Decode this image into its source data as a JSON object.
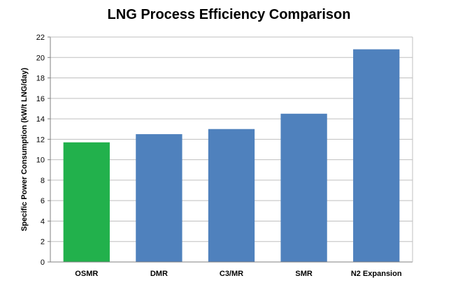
{
  "chart_data": {
    "type": "bar",
    "title": "LNG Process Efficiency Comparison",
    "xlabel": "",
    "ylabel": "Specific Power Consumption (kW/t LNG/day)",
    "categories": [
      "OSMR",
      "DMR",
      "C3/MR",
      "SMR",
      "N2 Expansion"
    ],
    "values": [
      11.7,
      12.5,
      13.0,
      14.5,
      20.8
    ],
    "bar_colors": [
      "#22B14C",
      "#4F81BD",
      "#4F81BD",
      "#4F81BD",
      "#4F81BD"
    ],
    "ylim": [
      0,
      22
    ],
    "yticks": [
      0,
      2,
      4,
      6,
      8,
      10,
      12,
      14,
      16,
      18,
      20,
      22
    ],
    "grid": true,
    "legend": "none"
  }
}
